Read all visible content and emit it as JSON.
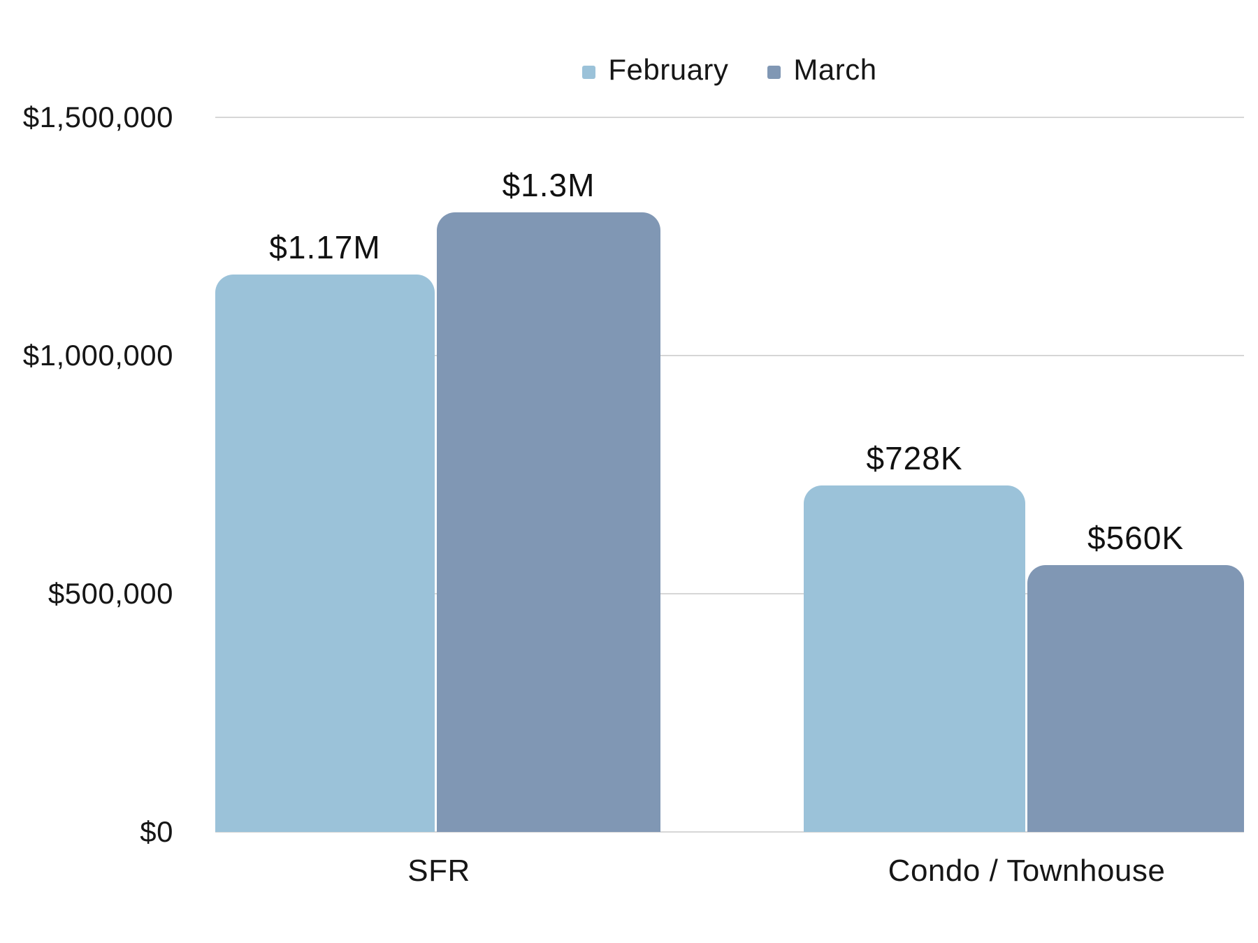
{
  "chart_data": {
    "type": "bar",
    "title": "",
    "categories": [
      "SFR",
      "Condo / Townhouse"
    ],
    "series": [
      {
        "name": "February",
        "color": "#9bc2d9",
        "values": [
          1170000,
          728000
        ],
        "labels": [
          "$1.17M",
          "$728K"
        ]
      },
      {
        "name": "March",
        "color": "#8097b4",
        "values": [
          1300000,
          560000
        ],
        "labels": [
          "$1.3M",
          "$560K"
        ]
      }
    ],
    "ylim": [
      0,
      1500000
    ],
    "yticks": [
      {
        "value": 1500000,
        "label": "$1,500,000"
      },
      {
        "value": 1000000,
        "label": "$1,000,000"
      },
      {
        "value": 500000,
        "label": "$500,000"
      },
      {
        "value": 0,
        "label": "$0"
      }
    ],
    "grid": true,
    "gridline_color": "#d6d6d6",
    "legend_position": "top",
    "text_color": "#161616"
  }
}
